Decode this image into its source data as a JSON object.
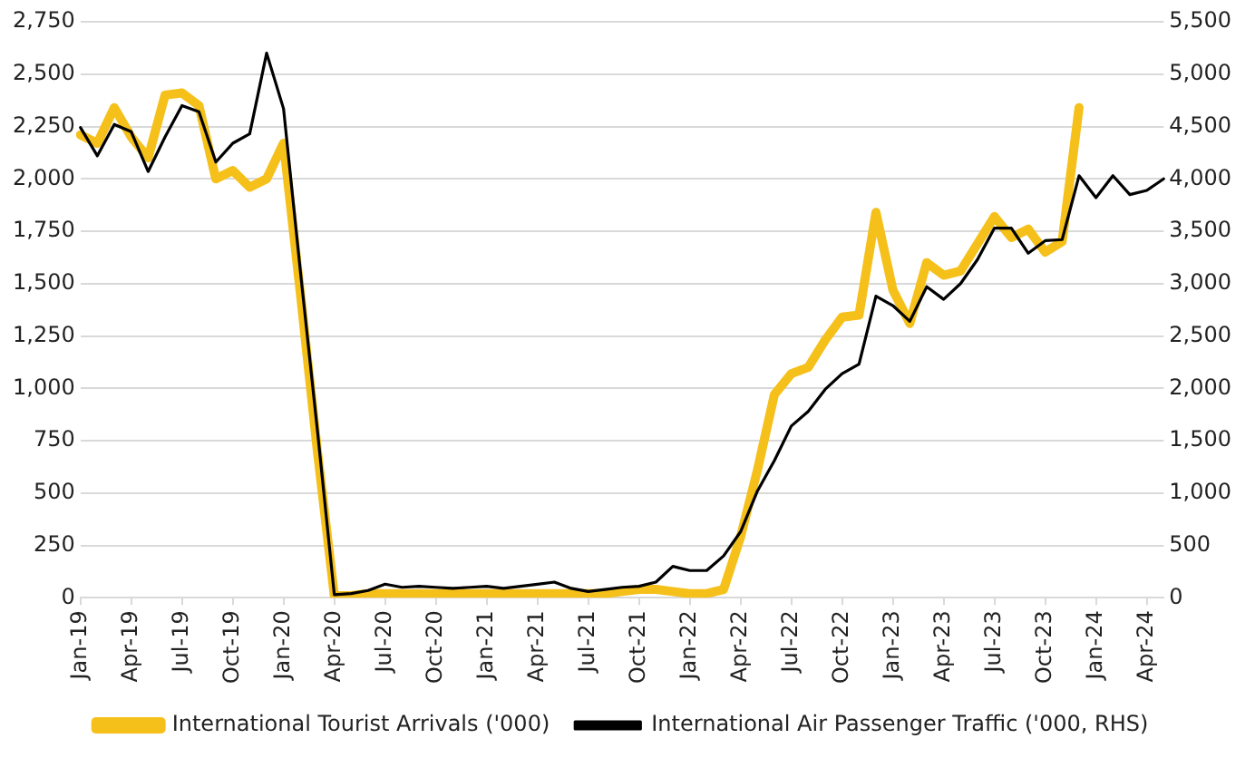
{
  "chart_data": {
    "type": "line",
    "categories": [
      "Jan-19",
      null,
      null,
      "Apr-19",
      null,
      null,
      "Jul-19",
      null,
      null,
      "Oct-19",
      null,
      null,
      "Jan-20",
      null,
      null,
      "Apr-20",
      null,
      null,
      "Jul-20",
      null,
      null,
      "Oct-20",
      null,
      null,
      "Jan-21",
      null,
      null,
      "Apr-21",
      null,
      null,
      "Jul-21",
      null,
      null,
      "Oct-21",
      null,
      null,
      "Jan-22",
      null,
      null,
      "Apr-22",
      null,
      null,
      "Jul-22",
      null,
      null,
      "Oct-22",
      null,
      null,
      "Jan-23",
      null,
      null,
      "Apr-23",
      null,
      null,
      "Jul-23",
      null,
      null,
      "Oct-23",
      null,
      null,
      "Jan-24",
      null,
      null,
      "Apr-24",
      null
    ],
    "series": [
      {
        "name": "International Tourist Arrivals ('000)",
        "color": "#f5c01a",
        "values": [
          2210,
          2170,
          2340,
          2200,
          2100,
          2400,
          2410,
          2350,
          2000,
          2040,
          1960,
          2000,
          2170,
          1450,
          700,
          10,
          10,
          20,
          20,
          20,
          20,
          20,
          20,
          20,
          20,
          20,
          20,
          20,
          20,
          20,
          20,
          20,
          30,
          40,
          40,
          30,
          20,
          20,
          40,
          290,
          610,
          970,
          1070,
          1100,
          1230,
          1340,
          1350,
          1840,
          1470,
          1310,
          1600,
          1540,
          1560,
          1690,
          1820,
          1720,
          1760,
          1650,
          1700,
          2340,
          null,
          null,
          null,
          null,
          null
        ]
      },
      {
        "name": "International Air Passenger Traffic ('000, RHS)",
        "color": "#000000",
        "axis": "y2",
        "values": [
          4490,
          4220,
          4520,
          4450,
          4070,
          4400,
          4700,
          4640,
          4160,
          4340,
          4430,
          5200,
          4670,
          3110,
          1600,
          30,
          40,
          70,
          130,
          100,
          110,
          100,
          90,
          100,
          110,
          90,
          110,
          130,
          150,
          90,
          60,
          80,
          100,
          110,
          150,
          300,
          260,
          260,
          400,
          630,
          1020,
          1310,
          1640,
          1780,
          1990,
          2140,
          2230,
          2880,
          2790,
          2640,
          2970,
          2850,
          3000,
          3230,
          3530,
          3530,
          3290,
          3410,
          3420,
          4030,
          3820,
          4030,
          3850,
          3890,
          4000
        ]
      }
    ],
    "ylim": [
      0,
      2750
    ],
    "yticks": [
      0,
      {
        "value": 250,
        "label": "250"
      },
      {
        "value": 500,
        "label": "500"
      },
      {
        "value": 750,
        "label": "750"
      },
      {
        "value": 1000,
        "label": "1,000"
      },
      {
        "value": 1250,
        "label": "1,250"
      },
      {
        "value": 1500,
        "label": "1,500"
      },
      {
        "value": 1750,
        "label": "1,750"
      },
      {
        "value": 2000,
        "label": "2,000"
      },
      {
        "value": 2250,
        "label": "2,250"
      },
      {
        "value": 2500,
        "label": "2,500"
      },
      {
        "value": 2750,
        "label": "2,750"
      }
    ],
    "y2lim": [
      0,
      5500
    ],
    "y2ticks": [
      0,
      500,
      {
        "value": 1000,
        "label": "1,000"
      },
      {
        "value": 1500,
        "label": "1,500"
      },
      {
        "value": 2000,
        "label": "2,000"
      },
      {
        "value": 2500,
        "label": "2,500"
      },
      {
        "value": 3000,
        "label": "3,000"
      },
      {
        "value": 3500,
        "label": "3,500"
      },
      {
        "value": 4000,
        "label": "4,000"
      },
      {
        "value": 4500,
        "label": "4,500"
      },
      {
        "value": 5000,
        "label": "5,000"
      },
      {
        "value": 5500,
        "label": "5,500"
      }
    ],
    "grid": "y",
    "legend": "bottom",
    "marker": "none",
    "line_style": "solid"
  }
}
